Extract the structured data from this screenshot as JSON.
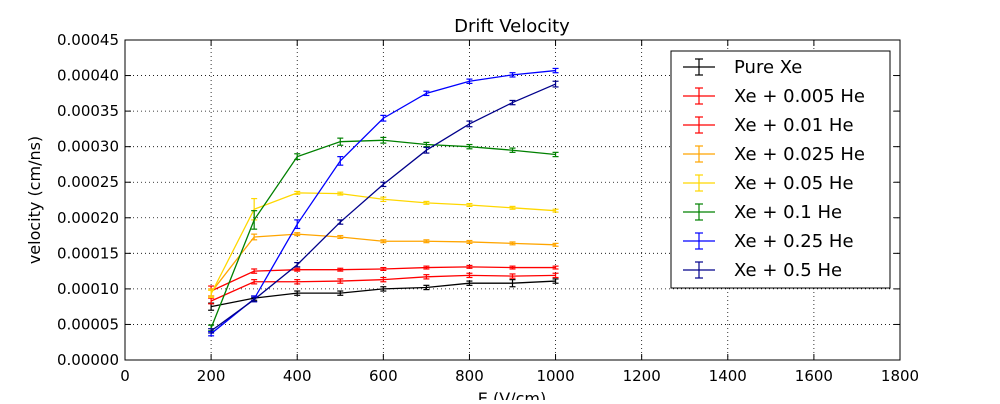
{
  "chart_data": {
    "type": "line",
    "title": "Drift Velocity",
    "xlabel": "E (V/cm)",
    "ylabel": "velocity (cm/ns)",
    "xlim": [
      0,
      1800
    ],
    "ylim": [
      0,
      0.00045
    ],
    "x_ticks": [
      0,
      200,
      400,
      600,
      800,
      1000,
      1200,
      1400,
      1600,
      1800
    ],
    "y_ticks": [
      0.0,
      5e-05,
      0.0001,
      0.00015,
      0.0002,
      0.00025,
      0.0003,
      0.00035,
      0.0004,
      0.00045
    ],
    "x_tick_labels": [
      "0",
      "200",
      "400",
      "600",
      "800",
      "1000",
      "1200",
      "1400",
      "1600",
      "1800"
    ],
    "y_tick_labels": [
      "0.00000",
      "0.00005",
      "0.00010",
      "0.00015",
      "0.00020",
      "0.00025",
      "0.00030",
      "0.00035",
      "0.00040",
      "0.00045"
    ],
    "grid": true,
    "legend_position": "top-right",
    "x": [
      200,
      300,
      400,
      500,
      600,
      700,
      800,
      900,
      1000
    ],
    "series": [
      {
        "name": "Pure Xe",
        "color": "#000000",
        "values": [
          7.5e-05,
          8.7e-05,
          9.4e-05,
          9.4e-05,
          0.0001,
          0.000102,
          0.000108,
          0.000108,
          0.000111
        ],
        "errors": [
          5e-06,
          3e-06,
          3e-06,
          3e-06,
          3e-06,
          3e-06,
          3e-06,
          5e-06,
          3e-06
        ]
      },
      {
        "name": "Xe + 0.005 He",
        "color": "#ff0000",
        "values": [
          8.3e-05,
          0.00011,
          0.00011,
          0.000111,
          0.000113,
          0.000117,
          0.000119,
          0.000118,
          0.000119
        ],
        "errors": [
          4e-06,
          3e-06,
          3e-06,
          3e-06,
          3e-06,
          3e-06,
          3e-06,
          3e-06,
          3e-06
        ]
      },
      {
        "name": "Xe + 0.01 He",
        "color": "#ff0000",
        "values": [
          9.7e-05,
          0.000125,
          0.000127,
          0.000127,
          0.000128,
          0.00013,
          0.000131,
          0.00013,
          0.00013
        ],
        "errors": [
          7e-06,
          3e-06,
          2e-06,
          2e-06,
          2e-06,
          2e-06,
          2e-06,
          2e-06,
          2e-06
        ]
      },
      {
        "name": "Xe + 0.025 He",
        "color": "#ffa500",
        "values": [
          9.5e-05,
          0.000173,
          0.000177,
          0.000173,
          0.000167,
          0.000167,
          0.000166,
          0.000164,
          0.000162
        ],
        "errors": [
          5e-06,
          4e-06,
          2e-06,
          2e-06,
          2e-06,
          2e-06,
          2e-06,
          2e-06,
          2e-06
        ]
      },
      {
        "name": "Xe + 0.05 He",
        "color": "#ffd700",
        "values": [
          9.3e-05,
          0.000212,
          0.000235,
          0.000234,
          0.000226,
          0.000221,
          0.000218,
          0.000214,
          0.00021
        ],
        "errors": [
          5e-06,
          1.5e-05,
          2e-06,
          2e-06,
          3e-06,
          2e-06,
          2e-06,
          2e-06,
          2e-06
        ]
      },
      {
        "name": "Xe + 0.1 He",
        "color": "#008000",
        "values": [
          4.5e-05,
          0.000197,
          0.000286,
          0.000307,
          0.000309,
          0.000303,
          0.0003,
          0.000295,
          0.000289
        ],
        "errors": [
          4e-06,
          1.3e-05,
          4e-06,
          5e-06,
          4e-06,
          3e-06,
          3e-06,
          3e-06,
          3e-06
        ]
      },
      {
        "name": "Xe + 0.25 He",
        "color": "#0000ff",
        "values": [
          3.7e-05,
          8.6e-05,
          0.000191,
          0.00028,
          0.00034,
          0.000375,
          0.000392,
          0.000401,
          0.000407
        ],
        "errors": [
          3e-06,
          4e-06,
          6e-06,
          6e-06,
          4e-06,
          3e-06,
          3e-06,
          3e-06,
          3e-06
        ]
      },
      {
        "name": "Xe + 0.5 He",
        "color": "#00008b",
        "values": [
          4.1e-05,
          8.5e-05,
          0.000134,
          0.000194,
          0.000247,
          0.000295,
          0.000332,
          0.000362,
          0.000388
        ],
        "errors": [
          3e-06,
          3e-06,
          3e-06,
          3e-06,
          3e-06,
          4e-06,
          4e-06,
          3e-06,
          4e-06
        ]
      }
    ]
  }
}
